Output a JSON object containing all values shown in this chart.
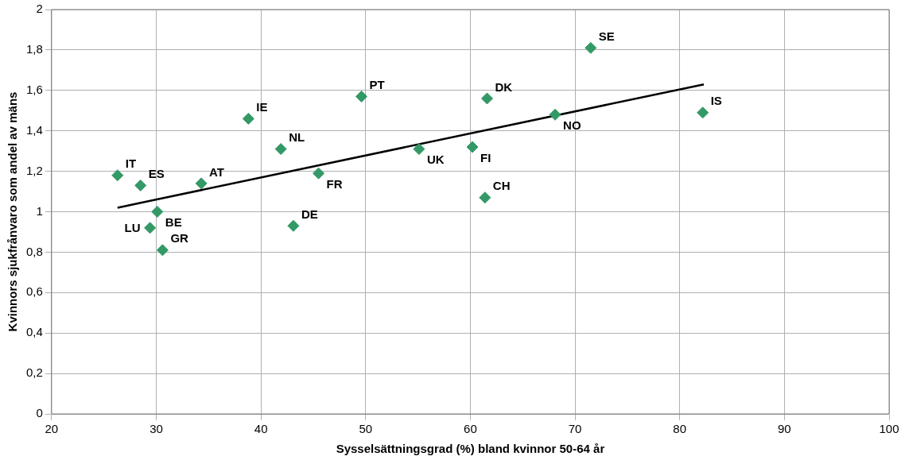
{
  "chart_data": {
    "type": "scatter",
    "xlabel": "Sysselsättningsgrad (%) bland kvinnor 50-64 år",
    "ylabel": "Kvinnors sjukfrånvaro som andel av mäns",
    "xlim": [
      20,
      100
    ],
    "xticks": [
      20,
      30,
      40,
      50,
      60,
      70,
      80,
      90,
      100
    ],
    "ylim": [
      0,
      2
    ],
    "yticks": [
      0,
      {
        "value": 0.2,
        "label": "0,2"
      },
      {
        "value": 0.4,
        "label": "0,4"
      },
      {
        "value": 0.6,
        "label": "0,6"
      },
      {
        "value": 0.8,
        "label": "0,8"
      },
      1,
      {
        "value": 1.2,
        "label": "1,2"
      },
      {
        "value": 1.4,
        "label": "1,4"
      },
      {
        "value": 1.6,
        "label": "1,6"
      },
      {
        "value": 1.8,
        "label": "1,8"
      },
      2
    ],
    "grid": true,
    "series": [
      {
        "marker": "diamond",
        "color": "#339966",
        "x": [
          26.3,
          28.5,
          34.3,
          30.1,
          29.4,
          30.6,
          38.8,
          41.9,
          45.5,
          43.1,
          49.6,
          55.1,
          61.6,
          60.2,
          61.4,
          68.1,
          71.5,
          82.2
        ],
        "values": [
          1.18,
          1.13,
          1.14,
          1.0,
          0.92,
          0.81,
          1.46,
          1.31,
          1.19,
          0.93,
          1.57,
          1.31,
          1.56,
          1.32,
          1.07,
          1.48,
          1.81,
          1.49
        ]
      },
      {
        "type": "line",
        "color": "#000000",
        "x": [
          26.3,
          82.3
        ],
        "values": [
          1.02,
          1.63
        ]
      }
    ],
    "annotations": [
      {
        "text": "IT",
        "x": 26.3,
        "y": 1.18
      },
      {
        "text": "ES",
        "x": 28.5,
        "y": 1.13
      },
      {
        "text": "AT",
        "x": 34.3,
        "y": 1.14
      },
      {
        "text": "BE",
        "x": 30.1,
        "y": 1.0
      },
      {
        "text": "LU",
        "x": 29.4,
        "y": 0.92
      },
      {
        "text": "GR",
        "x": 30.6,
        "y": 0.81
      },
      {
        "text": "IE",
        "x": 38.8,
        "y": 1.46
      },
      {
        "text": "NL",
        "x": 41.9,
        "y": 1.31
      },
      {
        "text": "FR",
        "x": 45.5,
        "y": 1.19
      },
      {
        "text": "DE",
        "x": 43.1,
        "y": 0.93
      },
      {
        "text": "PT",
        "x": 49.6,
        "y": 1.57
      },
      {
        "text": "UK",
        "x": 55.1,
        "y": 1.31
      },
      {
        "text": "DK",
        "x": 61.6,
        "y": 1.56
      },
      {
        "text": "FI",
        "x": 60.2,
        "y": 1.32
      },
      {
        "text": "CH",
        "x": 61.4,
        "y": 1.07
      },
      {
        "text": "NO",
        "x": 68.1,
        "y": 1.48
      },
      {
        "text": "SE",
        "x": 71.5,
        "y": 1.81
      },
      {
        "text": "IS",
        "x": 82.2,
        "y": 1.49
      }
    ]
  }
}
